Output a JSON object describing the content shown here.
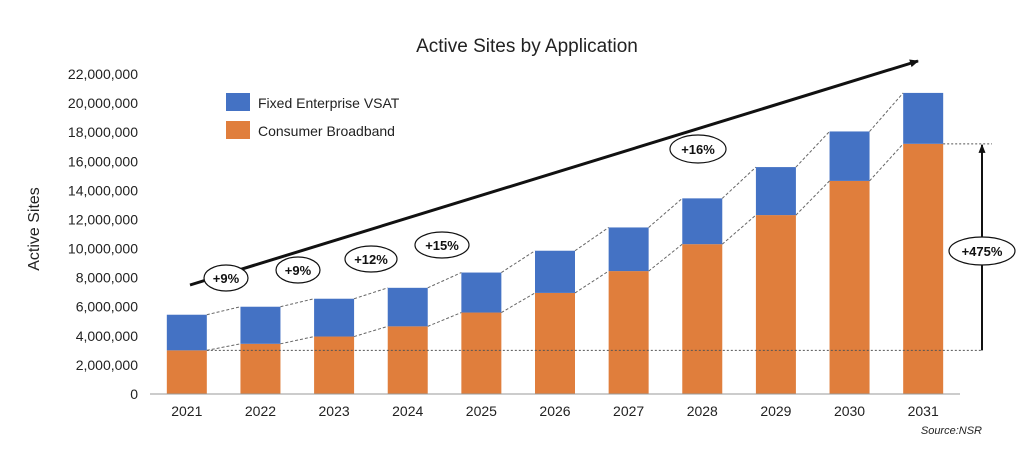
{
  "chart_data": {
    "type": "bar",
    "stacked": true,
    "title": "Active Sites by Application",
    "ylabel": "Active Sites",
    "xlabel": "",
    "ylim": [
      0,
      22000000
    ],
    "yticks": [
      "0",
      "2,000,000",
      "4,000,000",
      "6,000,000",
      "8,000,000",
      "10,000,000",
      "12,000,000",
      "14,000,000",
      "16,000,000",
      "18,000,000",
      "20,000,000",
      "22,000,000"
    ],
    "categories": [
      "2021",
      "2022",
      "2023",
      "2024",
      "2025",
      "2026",
      "2027",
      "2028",
      "2029",
      "2030",
      "2031"
    ],
    "series": [
      {
        "name": "Consumer Broadband",
        "color": "#E07E3C",
        "values": [
          3000000,
          3450000,
          3950000,
          4650000,
          5600000,
          6950000,
          8450000,
          10300000,
          12300000,
          14650000,
          17200000
        ]
      },
      {
        "name": "Fixed Enterprise VSAT",
        "color": "#4472C4",
        "values": [
          2450000,
          2550000,
          2600000,
          2650000,
          2750000,
          2900000,
          3000000,
          3150000,
          3300000,
          3400000,
          3500000
        ]
      }
    ],
    "legend": {
      "position": "top-left",
      "items": [
        "Fixed Enterprise VSAT",
        "Consumer Broadband"
      ]
    },
    "grid": false,
    "annotations": {
      "growth_labels": [
        "+9%",
        "+9%",
        "+12%",
        "+15%",
        "+16%"
      ],
      "total_growth": "+475%",
      "source": "Source:NSR"
    }
  }
}
